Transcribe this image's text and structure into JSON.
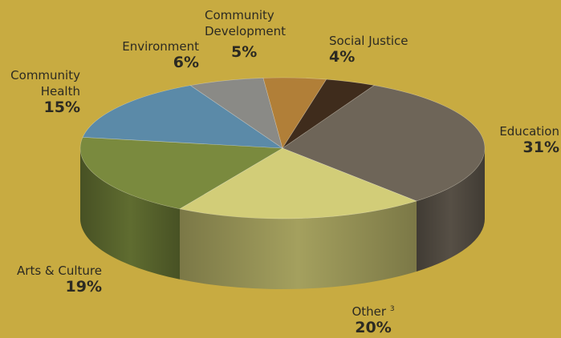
{
  "chart_data": {
    "type": "pie",
    "style": "3d",
    "slices": [
      {
        "label": "Education",
        "value": 31,
        "display": "31%",
        "color": "#6e6558"
      },
      {
        "label": "Other",
        "note": "3",
        "value": 20,
        "display": "20%",
        "color": "#d2cd78"
      },
      {
        "label": "Arts & Culture",
        "value": 19,
        "display": "19%",
        "color": "#7a8a3e"
      },
      {
        "label": "Community Health",
        "value": 15,
        "display": "15%",
        "color": "#5b8aa8"
      },
      {
        "label": "Environment",
        "value": 6,
        "display": "6%",
        "color": "#8a8a86"
      },
      {
        "label": "Community Development",
        "value": 5,
        "display": "5%",
        "color": "#b17f38"
      },
      {
        "label": "Social Justice",
        "value": 4,
        "display": "4%",
        "color": "#3f2c1c"
      }
    ]
  },
  "labels": {
    "education": {
      "name": "Education",
      "pct": "31%"
    },
    "other": {
      "name": "Other",
      "note": "3",
      "pct": "20%"
    },
    "arts": {
      "name": "Arts & Culture",
      "pct": "19%"
    },
    "health": {
      "name": "Community\nHealth",
      "pct": "15%"
    },
    "environment": {
      "name": "Environment",
      "pct": "6%"
    },
    "community_dev": {
      "name": "Community\nDevelopment",
      "pct": "5%"
    },
    "social_justice": {
      "name": "Social Justice",
      "pct": "4%"
    }
  }
}
